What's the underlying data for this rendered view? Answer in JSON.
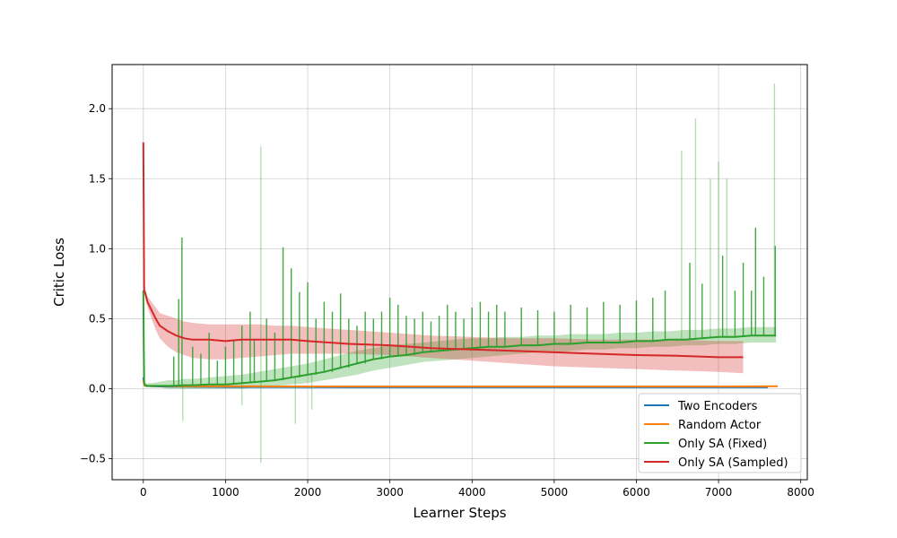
{
  "chart_data": {
    "type": "line",
    "xlabel": "Learner Steps",
    "ylabel": "Critic Loss",
    "xlim": [
      -380,
      8080
    ],
    "ylim": [
      -0.65,
      2.315
    ],
    "xticks": [
      0,
      1000,
      2000,
      3000,
      4000,
      5000,
      6000,
      7000,
      8000
    ],
    "yticks": [
      -0.5,
      0.0,
      0.5,
      1.0,
      1.5,
      2.0
    ],
    "xtick_labels": [
      "0",
      "1000",
      "2000",
      "3000",
      "4000",
      "5000",
      "6000",
      "7000",
      "8000"
    ],
    "ytick_labels": [
      "−0.5",
      "0.0",
      "0.5",
      "1.0",
      "1.5",
      "2.0"
    ],
    "grid": true,
    "legend_position": "lower-right",
    "series": [
      {
        "name": "Two Encoders",
        "color": "#1f77b4",
        "x": [
          0,
          10,
          20,
          50,
          100,
          200,
          500,
          1000,
          2000,
          3000,
          4000,
          5000,
          6000,
          7000,
          7600
        ],
        "y": [
          0.08,
          0.03,
          0.022,
          0.02,
          0.018,
          0.016,
          0.014,
          0.012,
          0.011,
          0.01,
          0.01,
          0.01,
          0.01,
          0.01,
          0.01
        ]
      },
      {
        "name": "Random Actor",
        "color": "#ff7f0e",
        "x": [
          0,
          10,
          20,
          50,
          100,
          200,
          500,
          1000,
          2000,
          3000,
          4000,
          5000,
          6000,
          7000,
          7720
        ],
        "y": [
          0.06,
          0.03,
          0.022,
          0.02,
          0.02,
          0.019,
          0.018,
          0.017,
          0.016,
          0.016,
          0.016,
          0.016,
          0.016,
          0.016,
          0.017
        ]
      },
      {
        "name": "Only SA (Fixed)",
        "color": "#2ca02c",
        "x": [
          0,
          5,
          10,
          20,
          50,
          100,
          200,
          300,
          400,
          500,
          600,
          800,
          1000,
          1200,
          1400,
          1600,
          1800,
          2000,
          2200,
          2400,
          2600,
          2800,
          3000,
          3200,
          3400,
          3600,
          3800,
          4000,
          4200,
          4400,
          4600,
          4800,
          5000,
          5200,
          5400,
          5600,
          5800,
          6000,
          6200,
          6400,
          6600,
          6800,
          7000,
          7200,
          7400,
          7600,
          7700
        ],
        "y": [
          0.7,
          0.3,
          0.05,
          0.025,
          0.02,
          0.02,
          0.02,
          0.02,
          0.022,
          0.025,
          0.025,
          0.03,
          0.03,
          0.04,
          0.05,
          0.06,
          0.08,
          0.1,
          0.12,
          0.15,
          0.18,
          0.21,
          0.23,
          0.24,
          0.26,
          0.27,
          0.28,
          0.29,
          0.3,
          0.3,
          0.31,
          0.31,
          0.32,
          0.32,
          0.33,
          0.33,
          0.33,
          0.34,
          0.34,
          0.35,
          0.35,
          0.36,
          0.37,
          0.37,
          0.38,
          0.38,
          0.38
        ],
        "band_lower": [
          0.02,
          0.02,
          0.02,
          0.01,
          0.01,
          0.01,
          0.01,
          0.0,
          0.0,
          0.0,
          0.0,
          0.0,
          0.0,
          0.0,
          0.01,
          0.02,
          0.03,
          0.04,
          0.06,
          0.08,
          0.1,
          0.13,
          0.15,
          0.17,
          0.19,
          0.2,
          0.21,
          0.22,
          0.23,
          0.24,
          0.25,
          0.26,
          0.26,
          0.27,
          0.28,
          0.28,
          0.29,
          0.29,
          0.3,
          0.3,
          0.31,
          0.31,
          0.32,
          0.32,
          0.33,
          0.33,
          0.33
        ],
        "band_upper": [
          0.7,
          0.5,
          0.08,
          0.04,
          0.04,
          0.04,
          0.05,
          0.06,
          0.06,
          0.07,
          0.07,
          0.08,
          0.09,
          0.1,
          0.12,
          0.14,
          0.16,
          0.18,
          0.21,
          0.24,
          0.27,
          0.29,
          0.31,
          0.32,
          0.33,
          0.34,
          0.35,
          0.36,
          0.36,
          0.37,
          0.37,
          0.38,
          0.38,
          0.39,
          0.39,
          0.39,
          0.4,
          0.4,
          0.41,
          0.41,
          0.42,
          0.42,
          0.43,
          0.43,
          0.44,
          0.44,
          0.44
        ],
        "spikes": [
          {
            "x": 370,
            "y": 0.23
          },
          {
            "x": 430,
            "y": 0.64
          },
          {
            "x": 470,
            "y": 1.08
          },
          {
            "x": 480,
            "y": -0.23
          },
          {
            "x": 600,
            "y": 0.3
          },
          {
            "x": 700,
            "y": 0.25
          },
          {
            "x": 800,
            "y": 0.4
          },
          {
            "x": 900,
            "y": 0.2
          },
          {
            "x": 1000,
            "y": 0.3
          },
          {
            "x": 1100,
            "y": 0.35
          },
          {
            "x": 1200,
            "y": 0.45
          },
          {
            "x": 1200,
            "y": -0.12
          },
          {
            "x": 1300,
            "y": 0.55
          },
          {
            "x": 1350,
            "y": 0.35
          },
          {
            "x": 1430,
            "y": 1.73
          },
          {
            "x": 1430,
            "y": -0.53
          },
          {
            "x": 1500,
            "y": 0.5
          },
          {
            "x": 1600,
            "y": 0.4
          },
          {
            "x": 1700,
            "y": 1.01
          },
          {
            "x": 1800,
            "y": 0.86
          },
          {
            "x": 1850,
            "y": -0.25
          },
          {
            "x": 1900,
            "y": 0.69
          },
          {
            "x": 2000,
            "y": 0.76
          },
          {
            "x": 2050,
            "y": -0.15
          },
          {
            "x": 2100,
            "y": 0.5
          },
          {
            "x": 2200,
            "y": 0.62
          },
          {
            "x": 2300,
            "y": 0.55
          },
          {
            "x": 2400,
            "y": 0.68
          },
          {
            "x": 2500,
            "y": 0.5
          },
          {
            "x": 2600,
            "y": 0.45
          },
          {
            "x": 2700,
            "y": 0.55
          },
          {
            "x": 2800,
            "y": 0.5
          },
          {
            "x": 2900,
            "y": 0.55
          },
          {
            "x": 3000,
            "y": 0.65
          },
          {
            "x": 3100,
            "y": 0.6
          },
          {
            "x": 3200,
            "y": 0.52
          },
          {
            "x": 3300,
            "y": 0.5
          },
          {
            "x": 3400,
            "y": 0.55
          },
          {
            "x": 3500,
            "y": 0.48
          },
          {
            "x": 3600,
            "y": 0.52
          },
          {
            "x": 3700,
            "y": 0.6
          },
          {
            "x": 3800,
            "y": 0.55
          },
          {
            "x": 3900,
            "y": 0.5
          },
          {
            "x": 4000,
            "y": 0.58
          },
          {
            "x": 4100,
            "y": 0.62
          },
          {
            "x": 4200,
            "y": 0.55
          },
          {
            "x": 4300,
            "y": 0.6
          },
          {
            "x": 4400,
            "y": 0.55
          },
          {
            "x": 4600,
            "y": 0.58
          },
          {
            "x": 4800,
            "y": 0.56
          },
          {
            "x": 5000,
            "y": 0.55
          },
          {
            "x": 5200,
            "y": 0.6
          },
          {
            "x": 5400,
            "y": 0.58
          },
          {
            "x": 5600,
            "y": 0.62
          },
          {
            "x": 5800,
            "y": 0.6
          },
          {
            "x": 6000,
            "y": 0.63
          },
          {
            "x": 6200,
            "y": 0.65
          },
          {
            "x": 6350,
            "y": 0.7
          },
          {
            "x": 6550,
            "y": 1.7
          },
          {
            "x": 6650,
            "y": 0.9
          },
          {
            "x": 6720,
            "y": 1.93
          },
          {
            "x": 6800,
            "y": 0.75
          },
          {
            "x": 6900,
            "y": 1.5
          },
          {
            "x": 7000,
            "y": 1.62
          },
          {
            "x": 7050,
            "y": 0.95
          },
          {
            "x": 7100,
            "y": 1.5
          },
          {
            "x": 7200,
            "y": 0.7
          },
          {
            "x": 7300,
            "y": 0.9
          },
          {
            "x": 7400,
            "y": 0.7
          },
          {
            "x": 7450,
            "y": 1.15
          },
          {
            "x": 7550,
            "y": 0.8
          },
          {
            "x": 7680,
            "y": 2.18
          },
          {
            "x": 7690,
            "y": 1.02
          }
        ]
      },
      {
        "name": "Only SA (Sampled)",
        "color": "#d62728",
        "x": [
          0,
          5,
          10,
          20,
          50,
          100,
          150,
          200,
          300,
          400,
          500,
          600,
          800,
          1000,
          1200,
          1400,
          1600,
          1800,
          2000,
          2500,
          3000,
          3500,
          4000,
          4500,
          5000,
          5500,
          6000,
          6500,
          7000,
          7300
        ],
        "y": [
          1.76,
          1.2,
          0.7,
          0.69,
          0.62,
          0.56,
          0.5,
          0.45,
          0.41,
          0.38,
          0.36,
          0.35,
          0.35,
          0.34,
          0.35,
          0.35,
          0.35,
          0.35,
          0.34,
          0.32,
          0.31,
          0.29,
          0.28,
          0.27,
          0.26,
          0.25,
          0.24,
          0.235,
          0.225,
          0.225
        ],
        "band_lower": [
          1.55,
          1.0,
          0.67,
          0.66,
          0.58,
          0.5,
          0.42,
          0.36,
          0.3,
          0.26,
          0.24,
          0.22,
          0.21,
          0.21,
          0.22,
          0.23,
          0.24,
          0.25,
          0.25,
          0.25,
          0.24,
          0.22,
          0.2,
          0.18,
          0.16,
          0.15,
          0.14,
          0.13,
          0.12,
          0.11
        ],
        "band_upper": [
          1.97,
          1.4,
          0.73,
          0.72,
          0.66,
          0.62,
          0.58,
          0.54,
          0.52,
          0.5,
          0.48,
          0.47,
          0.46,
          0.46,
          0.46,
          0.46,
          0.45,
          0.45,
          0.44,
          0.42,
          0.4,
          0.38,
          0.37,
          0.36,
          0.36,
          0.35,
          0.35,
          0.35,
          0.34,
          0.34
        ]
      }
    ]
  }
}
